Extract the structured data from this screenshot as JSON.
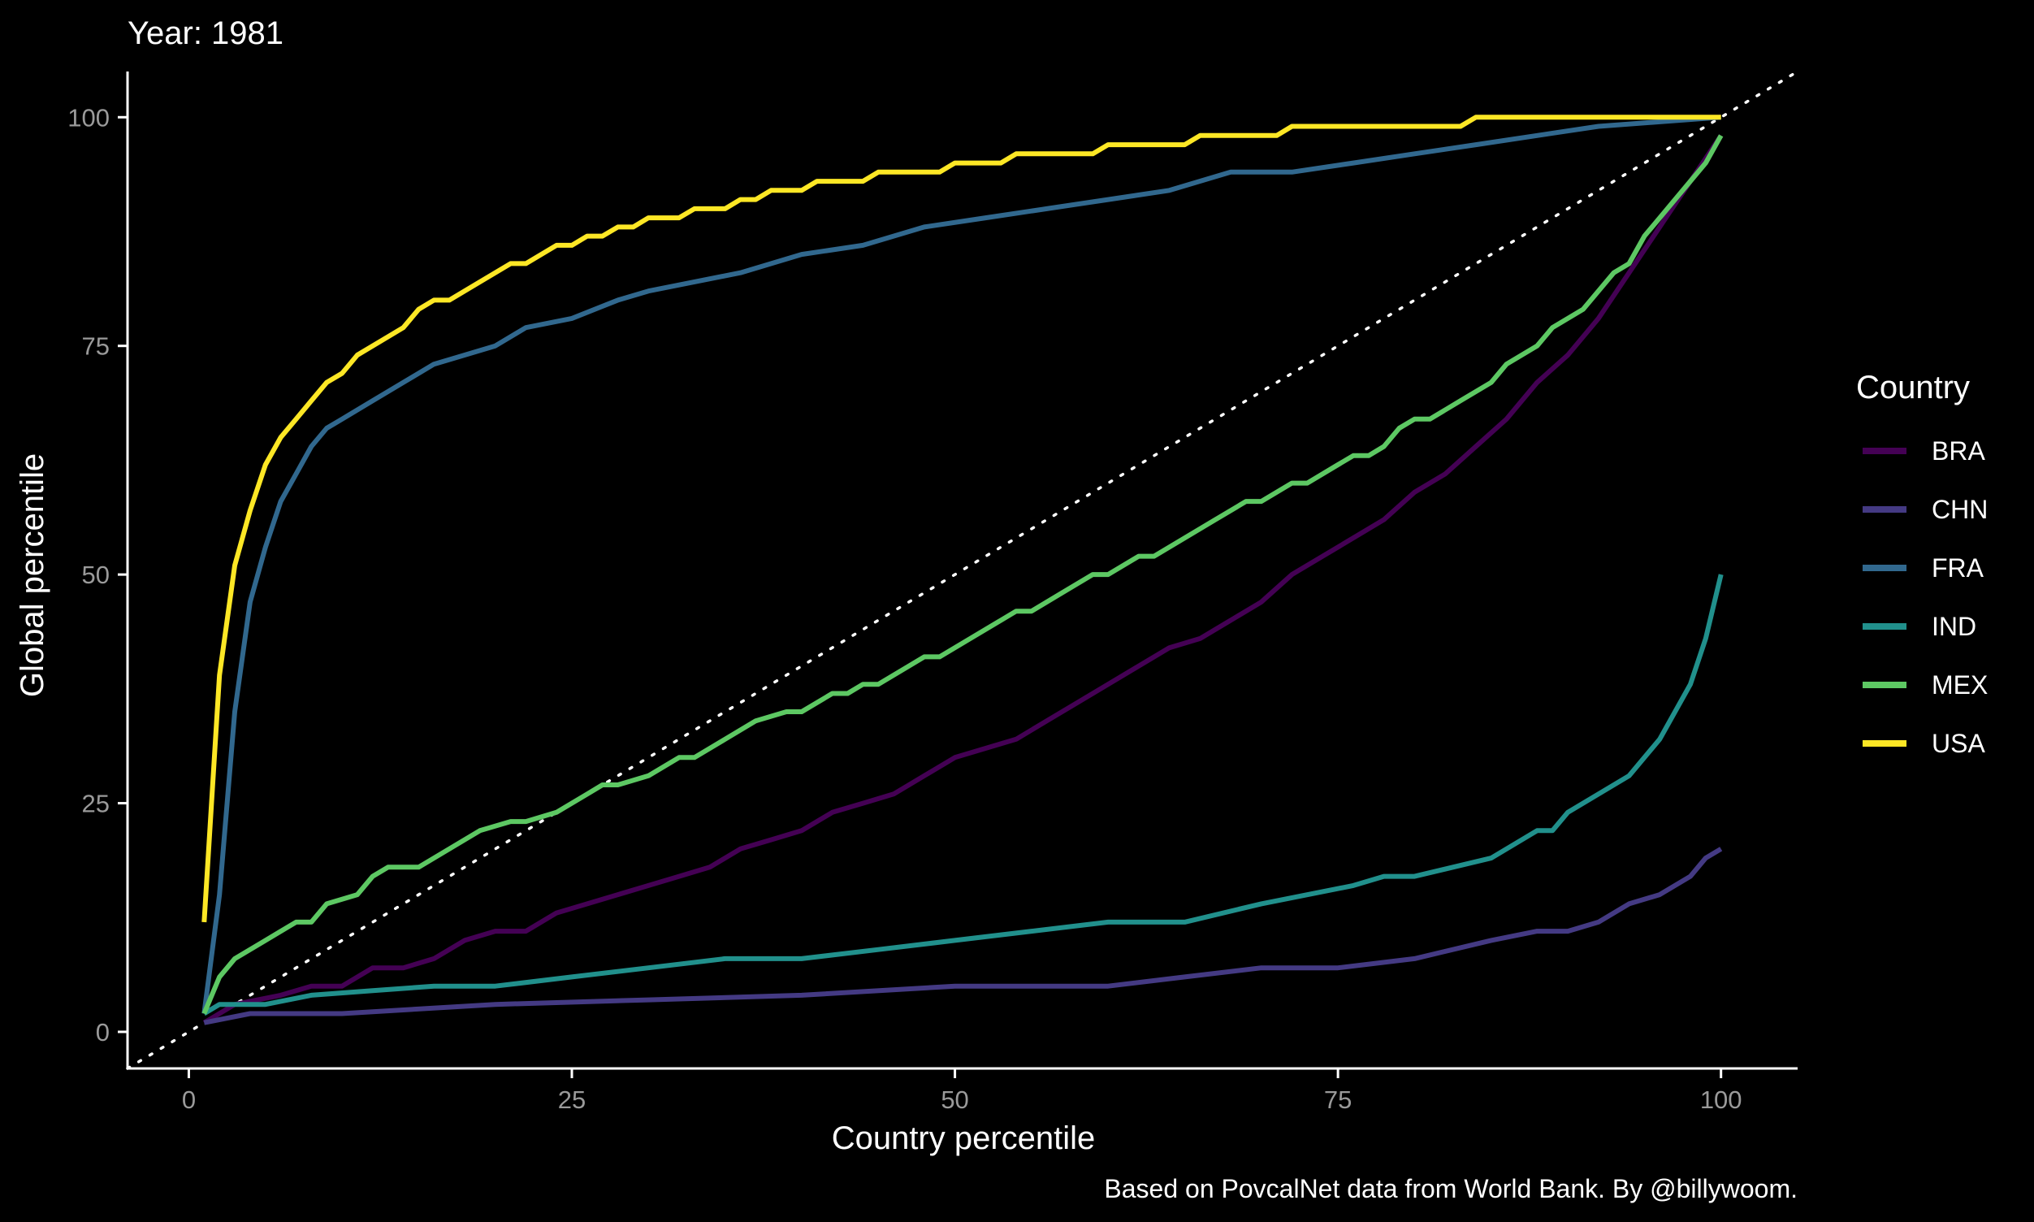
{
  "chart_data": {
    "type": "line",
    "title": "Year: 1981",
    "xlabel": "Country percentile",
    "ylabel": "Global percentile",
    "caption": "Based on PovcalNet data from World Bank. By @billywoom.",
    "xlim": [
      -4,
      105
    ],
    "ylim": [
      -4,
      105
    ],
    "xticks": [
      0,
      25,
      50,
      75,
      100
    ],
    "yticks": [
      0,
      25,
      50,
      75,
      100
    ],
    "grid": false,
    "legend": {
      "title": "Country",
      "position": "right"
    },
    "reference_line": {
      "style": "dotted",
      "from": [
        -4,
        -4
      ],
      "to": [
        105,
        105
      ],
      "color": "#ffffff"
    },
    "series": [
      {
        "name": "BRA",
        "color": "#440154",
        "points": [
          [
            1,
            1
          ],
          [
            3,
            3
          ],
          [
            6,
            4
          ],
          [
            8,
            5
          ],
          [
            10,
            5
          ],
          [
            12,
            7
          ],
          [
            14,
            7
          ],
          [
            16,
            8
          ],
          [
            18,
            10
          ],
          [
            20,
            11
          ],
          [
            22,
            11
          ],
          [
            24,
            13
          ],
          [
            26,
            14
          ],
          [
            28,
            15
          ],
          [
            30,
            16
          ],
          [
            32,
            17
          ],
          [
            34,
            18
          ],
          [
            36,
            20
          ],
          [
            38,
            21
          ],
          [
            40,
            22
          ],
          [
            42,
            24
          ],
          [
            44,
            25
          ],
          [
            46,
            26
          ],
          [
            48,
            28
          ],
          [
            50,
            30
          ],
          [
            52,
            31
          ],
          [
            54,
            32
          ],
          [
            56,
            34
          ],
          [
            58,
            36
          ],
          [
            60,
            38
          ],
          [
            62,
            40
          ],
          [
            64,
            42
          ],
          [
            66,
            43
          ],
          [
            68,
            45
          ],
          [
            70,
            47
          ],
          [
            72,
            50
          ],
          [
            74,
            52
          ],
          [
            76,
            54
          ],
          [
            78,
            56
          ],
          [
            80,
            59
          ],
          [
            82,
            61
          ],
          [
            84,
            64
          ],
          [
            86,
            67
          ],
          [
            88,
            71
          ],
          [
            90,
            74
          ],
          [
            92,
            78
          ],
          [
            94,
            83
          ],
          [
            96,
            88
          ],
          [
            98,
            93
          ],
          [
            100,
            98
          ]
        ]
      },
      {
        "name": "CHN",
        "color": "#443A83",
        "points": [
          [
            1,
            1
          ],
          [
            4,
            2
          ],
          [
            10,
            2
          ],
          [
            20,
            3
          ],
          [
            30,
            3.5
          ],
          [
            40,
            4
          ],
          [
            50,
            5
          ],
          [
            60,
            5
          ],
          [
            65,
            6
          ],
          [
            70,
            7
          ],
          [
            75,
            7
          ],
          [
            80,
            8
          ],
          [
            85,
            10
          ],
          [
            88,
            11
          ],
          [
            90,
            11
          ],
          [
            92,
            12
          ],
          [
            94,
            14
          ],
          [
            96,
            15
          ],
          [
            98,
            17
          ],
          [
            99,
            19
          ],
          [
            100,
            20
          ]
        ]
      },
      {
        "name": "FRA",
        "color": "#31688E",
        "points": [
          [
            1,
            2
          ],
          [
            2,
            15
          ],
          [
            3,
            35
          ],
          [
            4,
            47
          ],
          [
            5,
            53
          ],
          [
            6,
            58
          ],
          [
            7,
            61
          ],
          [
            8,
            64
          ],
          [
            9,
            66
          ],
          [
            10,
            67
          ],
          [
            12,
            69
          ],
          [
            14,
            71
          ],
          [
            16,
            73
          ],
          [
            18,
            74
          ],
          [
            20,
            75
          ],
          [
            22,
            77
          ],
          [
            25,
            78
          ],
          [
            28,
            80
          ],
          [
            30,
            81
          ],
          [
            33,
            82
          ],
          [
            36,
            83
          ],
          [
            40,
            85
          ],
          [
            44,
            86
          ],
          [
            48,
            88
          ],
          [
            52,
            89
          ],
          [
            56,
            90
          ],
          [
            60,
            91
          ],
          [
            64,
            92
          ],
          [
            68,
            94
          ],
          [
            72,
            94
          ],
          [
            76,
            95
          ],
          [
            80,
            96
          ],
          [
            84,
            97
          ],
          [
            88,
            98
          ],
          [
            92,
            99
          ],
          [
            96,
            99.5
          ],
          [
            100,
            100
          ]
        ]
      },
      {
        "name": "IND",
        "color": "#21908C",
        "points": [
          [
            1,
            2
          ],
          [
            2,
            3
          ],
          [
            5,
            3
          ],
          [
            8,
            4
          ],
          [
            12,
            4.5
          ],
          [
            16,
            5
          ],
          [
            20,
            5
          ],
          [
            25,
            6
          ],
          [
            30,
            7
          ],
          [
            35,
            8
          ],
          [
            40,
            8
          ],
          [
            45,
            9
          ],
          [
            50,
            10
          ],
          [
            55,
            11
          ],
          [
            60,
            12
          ],
          [
            65,
            12
          ],
          [
            70,
            14
          ],
          [
            76,
            16
          ],
          [
            78,
            17
          ],
          [
            80,
            17
          ],
          [
            85,
            19
          ],
          [
            88,
            22
          ],
          [
            89,
            22
          ],
          [
            90,
            24
          ],
          [
            92,
            26
          ],
          [
            94,
            28
          ],
          [
            96,
            32
          ],
          [
            98,
            38
          ],
          [
            99,
            43
          ],
          [
            100,
            50
          ]
        ]
      },
      {
        "name": "MEX",
        "color": "#5DC863",
        "points": [
          [
            1,
            2
          ],
          [
            2,
            6
          ],
          [
            3,
            8
          ],
          [
            5,
            10
          ],
          [
            7,
            12
          ],
          [
            8,
            12
          ],
          [
            9,
            14
          ],
          [
            11,
            15
          ],
          [
            12,
            17
          ],
          [
            13,
            18
          ],
          [
            15,
            18
          ],
          [
            17,
            20
          ],
          [
            19,
            22
          ],
          [
            21,
            23
          ],
          [
            22,
            23
          ],
          [
            24,
            24
          ],
          [
            26,
            26
          ],
          [
            27,
            27
          ],
          [
            28,
            27
          ],
          [
            30,
            28
          ],
          [
            32,
            30
          ],
          [
            33,
            30
          ],
          [
            35,
            32
          ],
          [
            37,
            34
          ],
          [
            39,
            35
          ],
          [
            40,
            35
          ],
          [
            42,
            37
          ],
          [
            43,
            37
          ],
          [
            44,
            38
          ],
          [
            45,
            38
          ],
          [
            47,
            40
          ],
          [
            48,
            41
          ],
          [
            49,
            41
          ],
          [
            51,
            43
          ],
          [
            53,
            45
          ],
          [
            54,
            46
          ],
          [
            55,
            46
          ],
          [
            57,
            48
          ],
          [
            59,
            50
          ],
          [
            60,
            50
          ],
          [
            62,
            52
          ],
          [
            63,
            52
          ],
          [
            65,
            54
          ],
          [
            67,
            56
          ],
          [
            69,
            58
          ],
          [
            70,
            58
          ],
          [
            72,
            60
          ],
          [
            73,
            60
          ],
          [
            75,
            62
          ],
          [
            76,
            63
          ],
          [
            77,
            63
          ],
          [
            78,
            64
          ],
          [
            79,
            66
          ],
          [
            80,
            67
          ],
          [
            81,
            67
          ],
          [
            83,
            69
          ],
          [
            85,
            71
          ],
          [
            86,
            73
          ],
          [
            88,
            75
          ],
          [
            89,
            77
          ],
          [
            91,
            79
          ],
          [
            93,
            83
          ],
          [
            94,
            84
          ],
          [
            95,
            87
          ],
          [
            97,
            91
          ],
          [
            99,
            95
          ],
          [
            100,
            98
          ]
        ]
      },
      {
        "name": "USA",
        "color": "#FDE725",
        "points": [
          [
            1,
            12
          ],
          [
            2,
            39
          ],
          [
            3,
            51
          ],
          [
            4,
            57
          ],
          [
            5,
            62
          ],
          [
            6,
            65
          ],
          [
            7,
            67
          ],
          [
            8,
            69
          ],
          [
            9,
            71
          ],
          [
            10,
            72
          ],
          [
            11,
            74
          ],
          [
            13,
            76
          ],
          [
            14,
            77
          ],
          [
            15,
            79
          ],
          [
            16,
            80
          ],
          [
            17,
            80
          ],
          [
            19,
            82
          ],
          [
            21,
            84
          ],
          [
            22,
            84
          ],
          [
            24,
            86
          ],
          [
            25,
            86
          ],
          [
            26,
            87
          ],
          [
            27,
            87
          ],
          [
            28,
            88
          ],
          [
            29,
            88
          ],
          [
            30,
            89
          ],
          [
            32,
            89
          ],
          [
            33,
            90
          ],
          [
            35,
            90
          ],
          [
            36,
            91
          ],
          [
            37,
            91
          ],
          [
            38,
            92
          ],
          [
            40,
            92
          ],
          [
            41,
            93
          ],
          [
            44,
            93
          ],
          [
            45,
            94
          ],
          [
            49,
            94
          ],
          [
            50,
            95
          ],
          [
            53,
            95
          ],
          [
            54,
            96
          ],
          [
            59,
            96
          ],
          [
            60,
            97
          ],
          [
            65,
            97
          ],
          [
            66,
            98
          ],
          [
            71,
            98
          ],
          [
            72,
            99
          ],
          [
            83,
            99
          ],
          [
            84,
            100
          ],
          [
            100,
            100
          ]
        ]
      }
    ]
  }
}
